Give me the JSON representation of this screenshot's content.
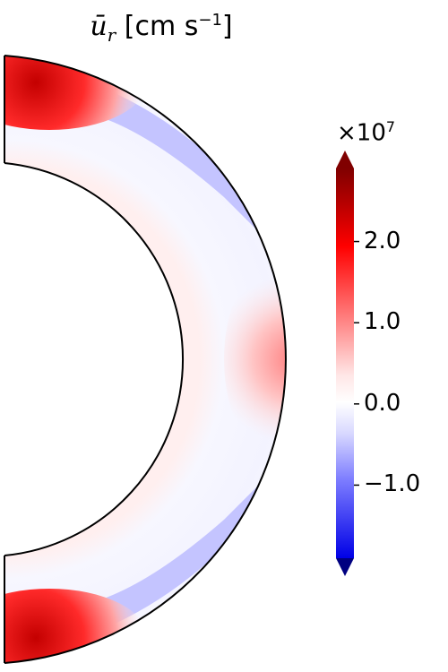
{
  "chart_data": {
    "type": "heatmap",
    "title": "ū_r [cm s⁻¹]",
    "title_symbol": "ū",
    "title_sub": "r",
    "title_unit": "[cm s",
    "title_exp": "−1",
    "title_close": "]",
    "geometry": "half-annulus (meridional slice, radius 0.5–1 of outer)",
    "colormap": "seismic (blue–white–red)",
    "colorbar": {
      "multiplier_base": "×10",
      "multiplier_exp": "7",
      "range": [
        -19000000.0,
        29000000.0
      ],
      "extend": "both",
      "ticks": [
        {
          "value": 20000000.0,
          "label": "2.0"
        },
        {
          "value": 10000000.0,
          "label": "1.0"
        },
        {
          "value": 0.0,
          "label": "0.0"
        },
        {
          "value": -10000000.0,
          "label": "−1.0"
        }
      ]
    },
    "features": [
      {
        "region": "polar outer shell (both poles)",
        "value": 26000000.0
      },
      {
        "region": "equatorial outer shell",
        "value": 5000000.0
      },
      {
        "region": "mid-latitude outer edge",
        "value": -12000000.0
      },
      {
        "region": "inner shell",
        "value": 1000000.0
      }
    ]
  }
}
